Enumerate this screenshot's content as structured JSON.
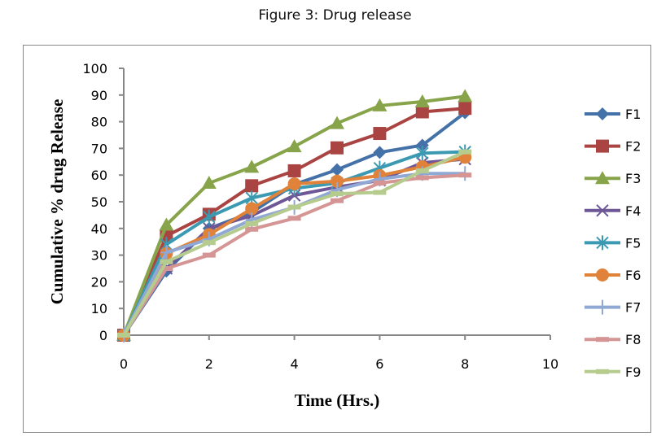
{
  "figure_title": "Figure 3: Drug release",
  "chart_data": {
    "type": "line",
    "title": "",
    "xlabel": "Time (Hrs.)",
    "ylabel": "Cumulative % drug Release",
    "xlim": [
      0,
      10
    ],
    "ylim": [
      0,
      100
    ],
    "xticks": [
      0,
      2,
      4,
      6,
      8,
      10
    ],
    "yticks": [
      0,
      10,
      20,
      30,
      40,
      50,
      60,
      70,
      80,
      90,
      100
    ],
    "grid": false,
    "legend": "right",
    "x": [
      0,
      1,
      2,
      3,
      4,
      5,
      6,
      7,
      8
    ],
    "series": [
      {
        "name": "F1",
        "color": "#4472A8",
        "marker": "diamond",
        "values": [
          0,
          24,
          40,
          46,
          56.5,
          62,
          68.5,
          71.2,
          83.4
        ]
      },
      {
        "name": "F2",
        "color": "#A94442",
        "marker": "square",
        "values": [
          0,
          37.2,
          45.3,
          56,
          61.6,
          70.2,
          75.6,
          83.7,
          85
        ]
      },
      {
        "name": "F3",
        "color": "#88A44A",
        "marker": "triangle",
        "values": [
          0,
          41.3,
          57,
          63,
          70.7,
          79.4,
          86,
          87.5,
          89.5
        ]
      },
      {
        "name": "F4",
        "color": "#6E5796",
        "marker": "x",
        "values": [
          0,
          25,
          40,
          44.8,
          52.4,
          55.5,
          58,
          64.6,
          66
        ]
      },
      {
        "name": "F5",
        "color": "#3B9AB2",
        "marker": "star",
        "values": [
          0,
          34,
          44.3,
          51.4,
          55,
          57,
          62.6,
          68.2,
          68.7
        ]
      },
      {
        "name": "F6",
        "color": "#E0823A",
        "marker": "circle",
        "values": [
          0,
          30.6,
          37.7,
          47.4,
          56.7,
          57.7,
          59.8,
          63.1,
          66.7
        ]
      },
      {
        "name": "F7",
        "color": "#8FA8D4",
        "marker": "plus",
        "values": [
          0,
          31,
          36,
          43.3,
          47.9,
          54.5,
          58.5,
          60.6,
          60.6
        ]
      },
      {
        "name": "F8",
        "color": "#D49594",
        "marker": "dash",
        "values": [
          0,
          25,
          30,
          39.7,
          43.8,
          50.4,
          57,
          59,
          60
        ]
      },
      {
        "name": "F9",
        "color": "#B6CC8E",
        "marker": "dash",
        "values": [
          0,
          27.5,
          34.7,
          41.8,
          48,
          53,
          53.5,
          61.6,
          68.7
        ]
      }
    ]
  }
}
